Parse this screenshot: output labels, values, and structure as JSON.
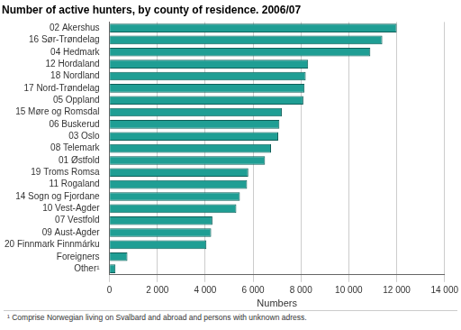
{
  "chart_data": {
    "type": "bar",
    "orientation": "horizontal",
    "title": "Number of active hunters, by county of residence. 2006/07",
    "x_label": "Numbers",
    "footnote": "¹ Comprise Norwegian living on Svalbard and abroad and persons with unknown adress.",
    "categories": [
      "02 Akershus",
      "16 Sør-Trøndelag",
      "04 Hedmark",
      "12 Hordaland",
      "18 Nordland",
      "17 Nord-Trøndelag",
      "05 Oppland",
      "15 Møre og Romsdal",
      "06 Buskerud",
      "03 Oslo",
      "08 Telemark",
      "01 Østfold",
      "19 Troms Romsa",
      "11 Rogaland",
      "14 Sogn og Fjordane",
      "10 Vest-Agder",
      "07 Vestfold",
      "09 Aust-Agder",
      "20 Finnmark Finnmárku",
      "Foreigners",
      "Other¹"
    ],
    "values": [
      12000,
      11400,
      10900,
      8300,
      8200,
      8150,
      8100,
      7200,
      7100,
      7050,
      6750,
      6500,
      5800,
      5750,
      5450,
      5300,
      4300,
      4250,
      4050,
      750,
      250
    ],
    "color": "#1f9e94",
    "xlim": [
      0,
      14000
    ],
    "xticks": [
      0,
      {
        "value": 2000,
        "label": "2 000"
      },
      {
        "value": 4000,
        "label": "4 000"
      },
      {
        "value": 6000,
        "label": "6 000"
      },
      {
        "value": 8000,
        "label": "8 000"
      },
      {
        "value": 10000,
        "label": "10 000"
      },
      {
        "value": 12000,
        "label": "12 000"
      },
      {
        "value": 14000,
        "label": "14 000"
      }
    ],
    "grid": true
  }
}
